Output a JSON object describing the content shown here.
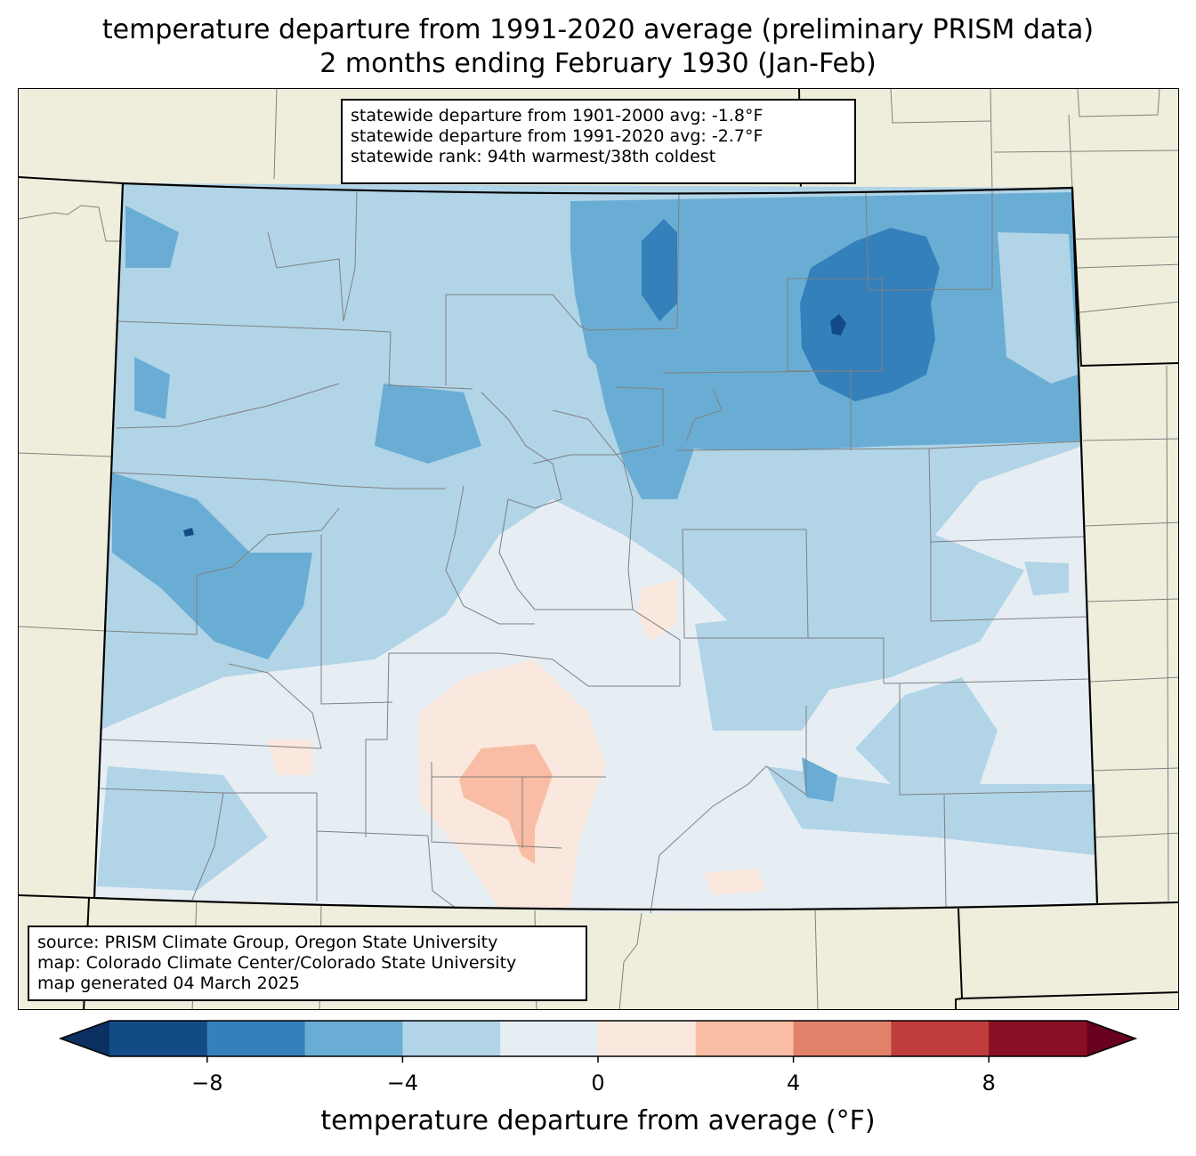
{
  "title": {
    "line1": "temperature departure from 1991-2020 average (preliminary PRISM data)",
    "line2": "2 months ending February 1930 (Jan-Feb)"
  },
  "stats": {
    "line1": "statewide departure from 1901-2000 avg: -1.8°F",
    "line2": "statewide departure from 1991-2020 avg: -2.7°F",
    "line3": "statewide rank: 94th warmest/38th coldest"
  },
  "credits": {
    "line1": "source: PRISM Climate Group, Oregon State University",
    "line2": "map: Colorado Climate Center/Colorado State University",
    "line3": "map generated 04 March 2025"
  },
  "colorbar": {
    "label": "temperature departure from average (°F)",
    "ticks": [
      "−8",
      "−4",
      "0",
      "4",
      "8"
    ],
    "tick_values": [
      -8,
      -4,
      0,
      4,
      8
    ],
    "range": [
      -10,
      10
    ],
    "bins": [
      {
        "from": -10,
        "to": -8,
        "color": "#134b87"
      },
      {
        "from": -8,
        "to": -6,
        "color": "#3480bb"
      },
      {
        "from": -6,
        "to": -4,
        "color": "#6aadd4"
      },
      {
        "from": -4,
        "to": -2,
        "color": "#b1d4e7"
      },
      {
        "from": -2,
        "to": 0,
        "color": "#e6eef4"
      },
      {
        "from": 0,
        "to": 2,
        "color": "#fae7dd"
      },
      {
        "from": 2,
        "to": 4,
        "color": "#f8bda4"
      },
      {
        "from": 4,
        "to": 6,
        "color": "#e2816a"
      },
      {
        "from": 6,
        "to": 8,
        "color": "#c03c3d"
      },
      {
        "from": 8,
        "to": 10,
        "color": "#880f24"
      }
    ],
    "under_color": "#0b3061",
    "over_color": "#68011d"
  },
  "colors": {
    "land": "#efeedc",
    "state_border": "#000000",
    "county_border": "#808080"
  }
}
